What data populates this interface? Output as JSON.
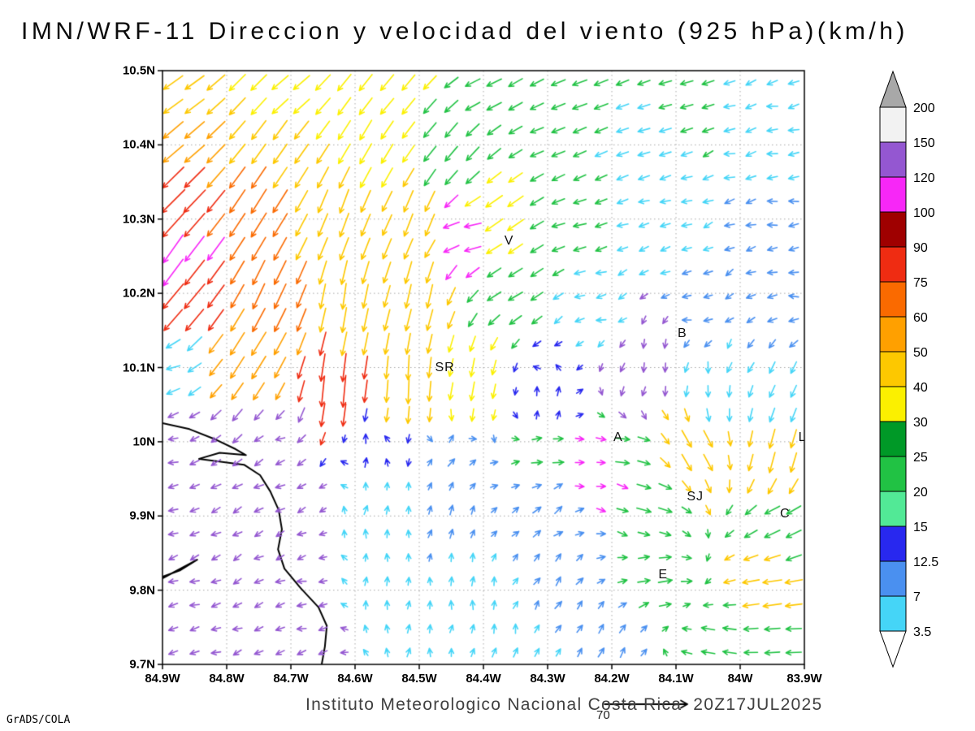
{
  "title": "IMN/WRF-11 Direccion y velocidad del viento (925 hPa)(km/h)",
  "credit": "GrADS/COLA",
  "footer": {
    "institute": "Instituto Meteorologico Nacional Costa Rica",
    "datetime": "20Z17JUL2025",
    "reference_vector_label": "70"
  },
  "axes": {
    "x_ticks": [
      {
        "lonW": 84.9,
        "label": "84.9W"
      },
      {
        "lonW": 84.8,
        "label": "84.8W"
      },
      {
        "lonW": 84.7,
        "label": "84.7W"
      },
      {
        "lonW": 84.6,
        "label": "84.6W"
      },
      {
        "lonW": 84.5,
        "label": "84.5W"
      },
      {
        "lonW": 84.4,
        "label": "84.4W"
      },
      {
        "lonW": 84.3,
        "label": "84.3W"
      },
      {
        "lonW": 84.2,
        "label": "84.2W"
      },
      {
        "lonW": 84.1,
        "label": "84.1W"
      },
      {
        "lonW": 84.0,
        "label": "84W"
      },
      {
        "lonW": 83.9,
        "label": "83.9W"
      }
    ],
    "y_ticks": [
      {
        "lat": 10.5,
        "label": "10.5N"
      },
      {
        "lat": 10.4,
        "label": "10.4N"
      },
      {
        "lat": 10.3,
        "label": "10.3N"
      },
      {
        "lat": 10.2,
        "label": "10.2N"
      },
      {
        "lat": 10.1,
        "label": "10.1N"
      },
      {
        "lat": 10.0,
        "label": "10N"
      },
      {
        "lat": 9.9,
        "label": "9.9N"
      },
      {
        "lat": 9.8,
        "label": "9.8N"
      },
      {
        "lat": 9.7,
        "label": "9.7N"
      }
    ]
  },
  "legend": {
    "labels_top_to_bottom": [
      "200",
      "150",
      "120",
      "100",
      "90",
      "75",
      "60",
      "50",
      "40",
      "30",
      "25",
      "20",
      "15",
      "12.5",
      "7",
      "3.5"
    ],
    "segment_colors_top_to_bottom": [
      "#f2f2f2",
      "#9457d1",
      "#f727f7",
      "#9f0000",
      "#ef2c12",
      "#fa6a00",
      "#ffa000",
      "#fdc800",
      "#fbf000",
      "#009927",
      "#21c244",
      "#52e996",
      "#2828ef",
      "#4a90f0",
      "#45d5f7"
    ],
    "above_max_color": "#a8a8a8",
    "below_min_color": "#ffffff"
  },
  "chart_data": {
    "type": "vector_field",
    "quantity": "Direccion y velocidad del viento",
    "level": "925 hPa",
    "units": "km/h",
    "model": "IMN/WRF-11",
    "valid_time": "20Z17JUL2025",
    "reference_vector_kmh": 70,
    "lon_range_W": [
      84.9,
      83.9
    ],
    "lat_range_N": [
      9.7,
      10.5
    ],
    "speed_levels_kmh": [
      3.5,
      7,
      12.5,
      15,
      20,
      25,
      30,
      40,
      50,
      60,
      75,
      90,
      100,
      120,
      150,
      200
    ],
    "vector_grid": {
      "cols": 30,
      "rows": 25
    },
    "station_labels": [
      {
        "label": "V",
        "lonW": 84.36,
        "lat": 10.27
      },
      {
        "label": "B",
        "lonW": 84.09,
        "lat": 10.145
      },
      {
        "label": "SR",
        "lonW": 84.46,
        "lat": 10.1
      },
      {
        "label": "A",
        "lonW": 84.19,
        "lat": 10.005
      },
      {
        "label": "SJ",
        "lonW": 84.07,
        "lat": 9.925
      },
      {
        "label": "C",
        "lonW": 83.93,
        "lat": 9.902
      },
      {
        "label": "E",
        "lonW": 84.12,
        "lat": 9.82
      },
      {
        "label": "L",
        "lonW": 83.903,
        "lat": 10.005
      }
    ],
    "flow_samples_columns": [
      "lonW",
      "lat",
      "toward_deg",
      "speed_kmh",
      "color"
    ],
    "flow_samples": [
      [
        84.87,
        10.47,
        235,
        45,
        "#fdc800"
      ],
      [
        84.7,
        10.47,
        230,
        40,
        "#fbf000"
      ],
      [
        84.55,
        10.46,
        220,
        38,
        "#fbf000"
      ],
      [
        84.4,
        10.47,
        245,
        28,
        "#21c244"
      ],
      [
        84.25,
        10.47,
        250,
        25,
        "#21c244"
      ],
      [
        84.1,
        10.47,
        255,
        20,
        "#21c244"
      ],
      [
        83.95,
        10.47,
        258,
        15,
        "#45d5f7"
      ],
      [
        84.87,
        10.4,
        230,
        52,
        "#ffa000"
      ],
      [
        84.72,
        10.4,
        215,
        46,
        "#fdc800"
      ],
      [
        84.58,
        10.4,
        210,
        45,
        "#fbf000"
      ],
      [
        84.45,
        10.4,
        220,
        35,
        "#21c244"
      ],
      [
        84.3,
        10.41,
        250,
        22,
        "#21c244"
      ],
      [
        84.15,
        10.41,
        255,
        18,
        "#45d5f7"
      ],
      [
        83.95,
        10.4,
        260,
        14,
        "#45d5f7"
      ],
      [
        84.88,
        10.32,
        225,
        68,
        "#ef2c12"
      ],
      [
        84.75,
        10.31,
        212,
        58,
        "#fa6a00"
      ],
      [
        84.62,
        10.31,
        200,
        50,
        "#fdc800"
      ],
      [
        84.5,
        10.3,
        200,
        48,
        "#fdc800"
      ],
      [
        84.38,
        10.3,
        235,
        40,
        "#fbf000"
      ],
      [
        84.26,
        10.29,
        258,
        20,
        "#21c244"
      ],
      [
        84.12,
        10.29,
        262,
        13,
        "#45d5f7"
      ],
      [
        83.94,
        10.29,
        263,
        12,
        "#4a90f0"
      ],
      [
        84.87,
        10.2,
        220,
        68,
        "#ef2c12"
      ],
      [
        84.74,
        10.2,
        205,
        56,
        "#fa6a00"
      ],
      [
        84.62,
        10.19,
        188,
        52,
        "#fdc800"
      ],
      [
        84.5,
        10.2,
        192,
        48,
        "#fdc800"
      ],
      [
        84.36,
        10.2,
        240,
        28,
        "#21c244"
      ],
      [
        84.22,
        10.18,
        262,
        12,
        "#45d5f7"
      ],
      [
        84.08,
        10.17,
        268,
        10,
        "#4a90f0"
      ],
      [
        83.93,
        10.18,
        268,
        12,
        "#4a90f0"
      ],
      [
        84.89,
        10.25,
        215,
        72,
        "#f727f7"
      ],
      [
        84.43,
        10.28,
        265,
        30,
        "#f727f7"
      ],
      [
        84.89,
        10.1,
        255,
        22,
        "#45d5f7"
      ],
      [
        84.76,
        10.12,
        212,
        55,
        "#ffa000"
      ],
      [
        84.63,
        10.07,
        185,
        68,
        "#ef2c12"
      ],
      [
        84.52,
        10.08,
        182,
        50,
        "#fdc800"
      ],
      [
        84.42,
        10.08,
        190,
        35,
        "#fbf000"
      ],
      [
        84.3,
        10.06,
        5,
        12,
        "#2828ef"
      ],
      [
        84.17,
        10.08,
        195,
        12,
        "#9457d1"
      ],
      [
        84.05,
        10.08,
        190,
        16,
        "#45d5f7"
      ],
      [
        83.93,
        10.08,
        205,
        20,
        "#45d5f7"
      ],
      [
        84.13,
        10.14,
        200,
        10,
        "#9457d1"
      ],
      [
        84.87,
        10.0,
        258,
        11,
        "#9457d1"
      ],
      [
        84.72,
        10.0,
        250,
        11,
        "#9457d1"
      ],
      [
        84.58,
        9.99,
        0,
        13,
        "#2828ef"
      ],
      [
        84.45,
        9.98,
        30,
        12,
        "#4a90f0"
      ],
      [
        84.3,
        9.98,
        75,
        16,
        "#21c244"
      ],
      [
        84.18,
        9.99,
        95,
        25,
        "#21c244"
      ],
      [
        84.07,
        9.99,
        150,
        38,
        "#fdc800"
      ],
      [
        83.94,
        9.98,
        195,
        40,
        "#fdc800"
      ],
      [
        84.22,
        9.97,
        90,
        8,
        "#f727f7"
      ],
      [
        84.87,
        9.9,
        252,
        11,
        "#9457d1"
      ],
      [
        84.72,
        9.9,
        248,
        11,
        "#9457d1"
      ],
      [
        84.58,
        9.9,
        8,
        11,
        "#45d5f7"
      ],
      [
        84.45,
        9.9,
        15,
        12,
        "#4a90f0"
      ],
      [
        84.3,
        9.9,
        55,
        13,
        "#4a90f0"
      ],
      [
        84.14,
        9.92,
        105,
        25,
        "#21c244"
      ],
      [
        83.94,
        9.89,
        245,
        30,
        "#21c244"
      ],
      [
        84.87,
        9.8,
        255,
        11,
        "#9457d1"
      ],
      [
        84.7,
        9.8,
        258,
        11,
        "#9457d1"
      ],
      [
        84.56,
        9.8,
        10,
        10,
        "#45d5f7"
      ],
      [
        84.42,
        9.8,
        8,
        11,
        "#45d5f7"
      ],
      [
        84.28,
        9.8,
        35,
        12,
        "#4a90f0"
      ],
      [
        84.12,
        9.81,
        80,
        22,
        "#21c244"
      ],
      [
        83.95,
        9.8,
        262,
        35,
        "#fdc800"
      ],
      [
        84.86,
        9.72,
        252,
        11,
        "#9457d1"
      ],
      [
        84.68,
        9.72,
        255,
        11,
        "#9457d1"
      ],
      [
        84.52,
        9.72,
        5,
        10,
        "#45d5f7"
      ],
      [
        84.36,
        9.72,
        12,
        12,
        "#45d5f7"
      ],
      [
        84.2,
        9.72,
        30,
        14,
        "#4a90f0"
      ],
      [
        84.04,
        9.73,
        280,
        22,
        "#21c244"
      ],
      [
        83.92,
        9.74,
        268,
        26,
        "#21c244"
      ]
    ],
    "coastline_lonW_lat": [
      [
        [
          84.9,
          10.025
        ],
        [
          84.858,
          10.017
        ],
        [
          84.82,
          10.004
        ],
        [
          84.786,
          9.99
        ],
        [
          84.77,
          9.982
        ],
        [
          84.811,
          9.985
        ],
        [
          84.843,
          9.977
        ],
        [
          84.773,
          9.969
        ],
        [
          84.748,
          9.955
        ],
        [
          84.732,
          9.933
        ],
        [
          84.719,
          9.908
        ],
        [
          84.714,
          9.882
        ],
        [
          84.72,
          9.855
        ],
        [
          84.71,
          9.829
        ],
        [
          84.685,
          9.803
        ],
        [
          84.657,
          9.777
        ],
        [
          84.644,
          9.752
        ],
        [
          84.647,
          9.724
        ],
        [
          84.652,
          9.7
        ]
      ],
      [
        [
          84.9,
          9.816
        ],
        [
          84.846,
          9.841
        ],
        [
          84.872,
          9.827
        ],
        [
          84.9,
          9.818
        ]
      ]
    ]
  }
}
